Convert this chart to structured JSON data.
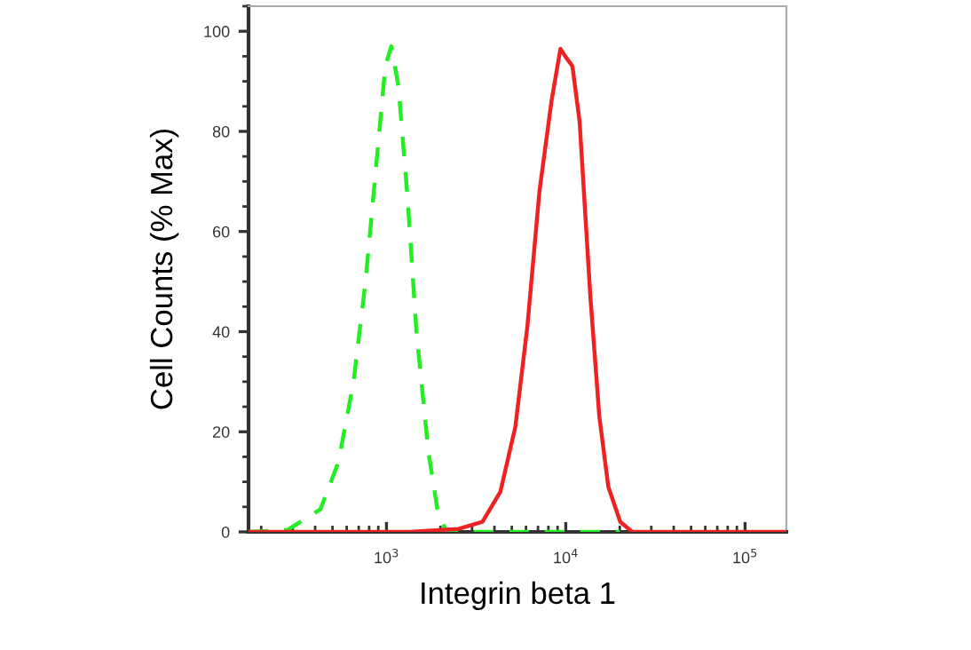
{
  "chart_data": {
    "type": "line",
    "xlabel": "Integrin beta 1",
    "ylabel": "Cell Counts (% Max)",
    "log": "x",
    "xlim": [
      170,
      170000
    ],
    "xticks": [
      {
        "value": 1000,
        "label": "10$^{3}$"
      },
      {
        "value": 10000,
        "label": "10$^{4}$"
      },
      {
        "value": 100000,
        "label": "10$^{5}$"
      }
    ],
    "ylim": [
      0,
      105
    ],
    "yticks": [
      0,
      20,
      40,
      60,
      80,
      100
    ],
    "grid": false,
    "legend": false,
    "marker": "none",
    "series": [
      {
        "color": "#22ee22",
        "line_style": "dashed",
        "x": [
          170,
          281,
          428,
          540,
          655,
          764,
          891,
          985,
          1064,
          1166,
          1309,
          1469,
          1713,
          1923,
          2158,
          20000
        ],
        "values": [
          0,
          0.4,
          4.5,
          14,
          30,
          50,
          76,
          93,
          97,
          89,
          67,
          40,
          16,
          4.5,
          0,
          0
        ]
      },
      {
        "color": "#ee2222",
        "line_style": "solid",
        "x": [
          170,
          1360,
          2520,
          3430,
          4315,
          5235,
          6105,
          7130,
          8320,
          9340,
          9930,
          10890,
          11940,
          13710,
          15390,
          17270,
          20130,
          23490,
          170000
        ],
        "values": [
          0,
          0,
          0.6,
          2,
          8,
          21,
          41,
          68,
          86,
          96.5,
          95,
          93,
          82,
          47,
          23,
          9,
          2,
          0,
          0
        ]
      }
    ]
  }
}
